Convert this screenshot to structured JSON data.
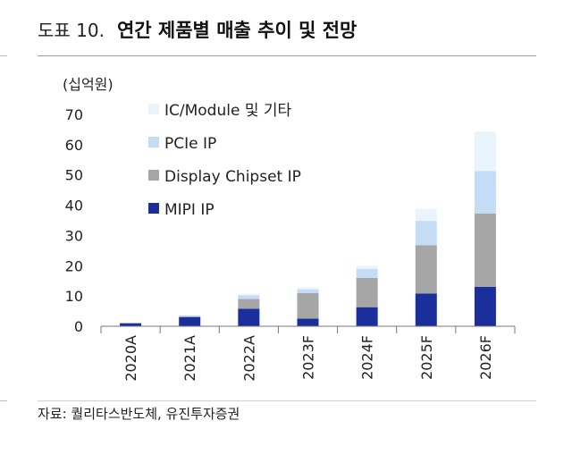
{
  "header": {
    "figure_no": "도표 10.",
    "title": "연간 제품별 매출 추이 및 전망"
  },
  "source": "자료: 퀄리타스반도체, 유진투자증권",
  "chart_data": {
    "type": "bar",
    "stacked": true,
    "unit_label": "(십억원)",
    "categories": [
      "2020A",
      "2021A",
      "2022A",
      "2023F",
      "2024F",
      "2025F",
      "2026F"
    ],
    "series": [
      {
        "name": "MIPI IP",
        "color": "#1a2f9c",
        "values": [
          1.0,
          3.0,
          5.8,
          2.5,
          6.3,
          10.8,
          13.0
        ]
      },
      {
        "name": "Display Chipset IP",
        "color": "#a6a6a6",
        "values": [
          0.0,
          0.3,
          3.2,
          8.5,
          9.7,
          16.0,
          24.3
        ]
      },
      {
        "name": "PCIe IP",
        "color": "#c5dcf6",
        "values": [
          0.0,
          0.3,
          1.2,
          1.2,
          3.0,
          8.0,
          14.0
        ]
      },
      {
        "name": "IC/Module 및 기타",
        "color": "#eaf4fd",
        "values": [
          0.0,
          0.2,
          0.5,
          0.6,
          1.0,
          4.0,
          13.0
        ]
      }
    ],
    "ylim": [
      0,
      70
    ],
    "yticks": [
      0,
      10,
      20,
      30,
      40,
      50,
      60,
      70
    ],
    "legend": "top-left",
    "grid": false
  }
}
